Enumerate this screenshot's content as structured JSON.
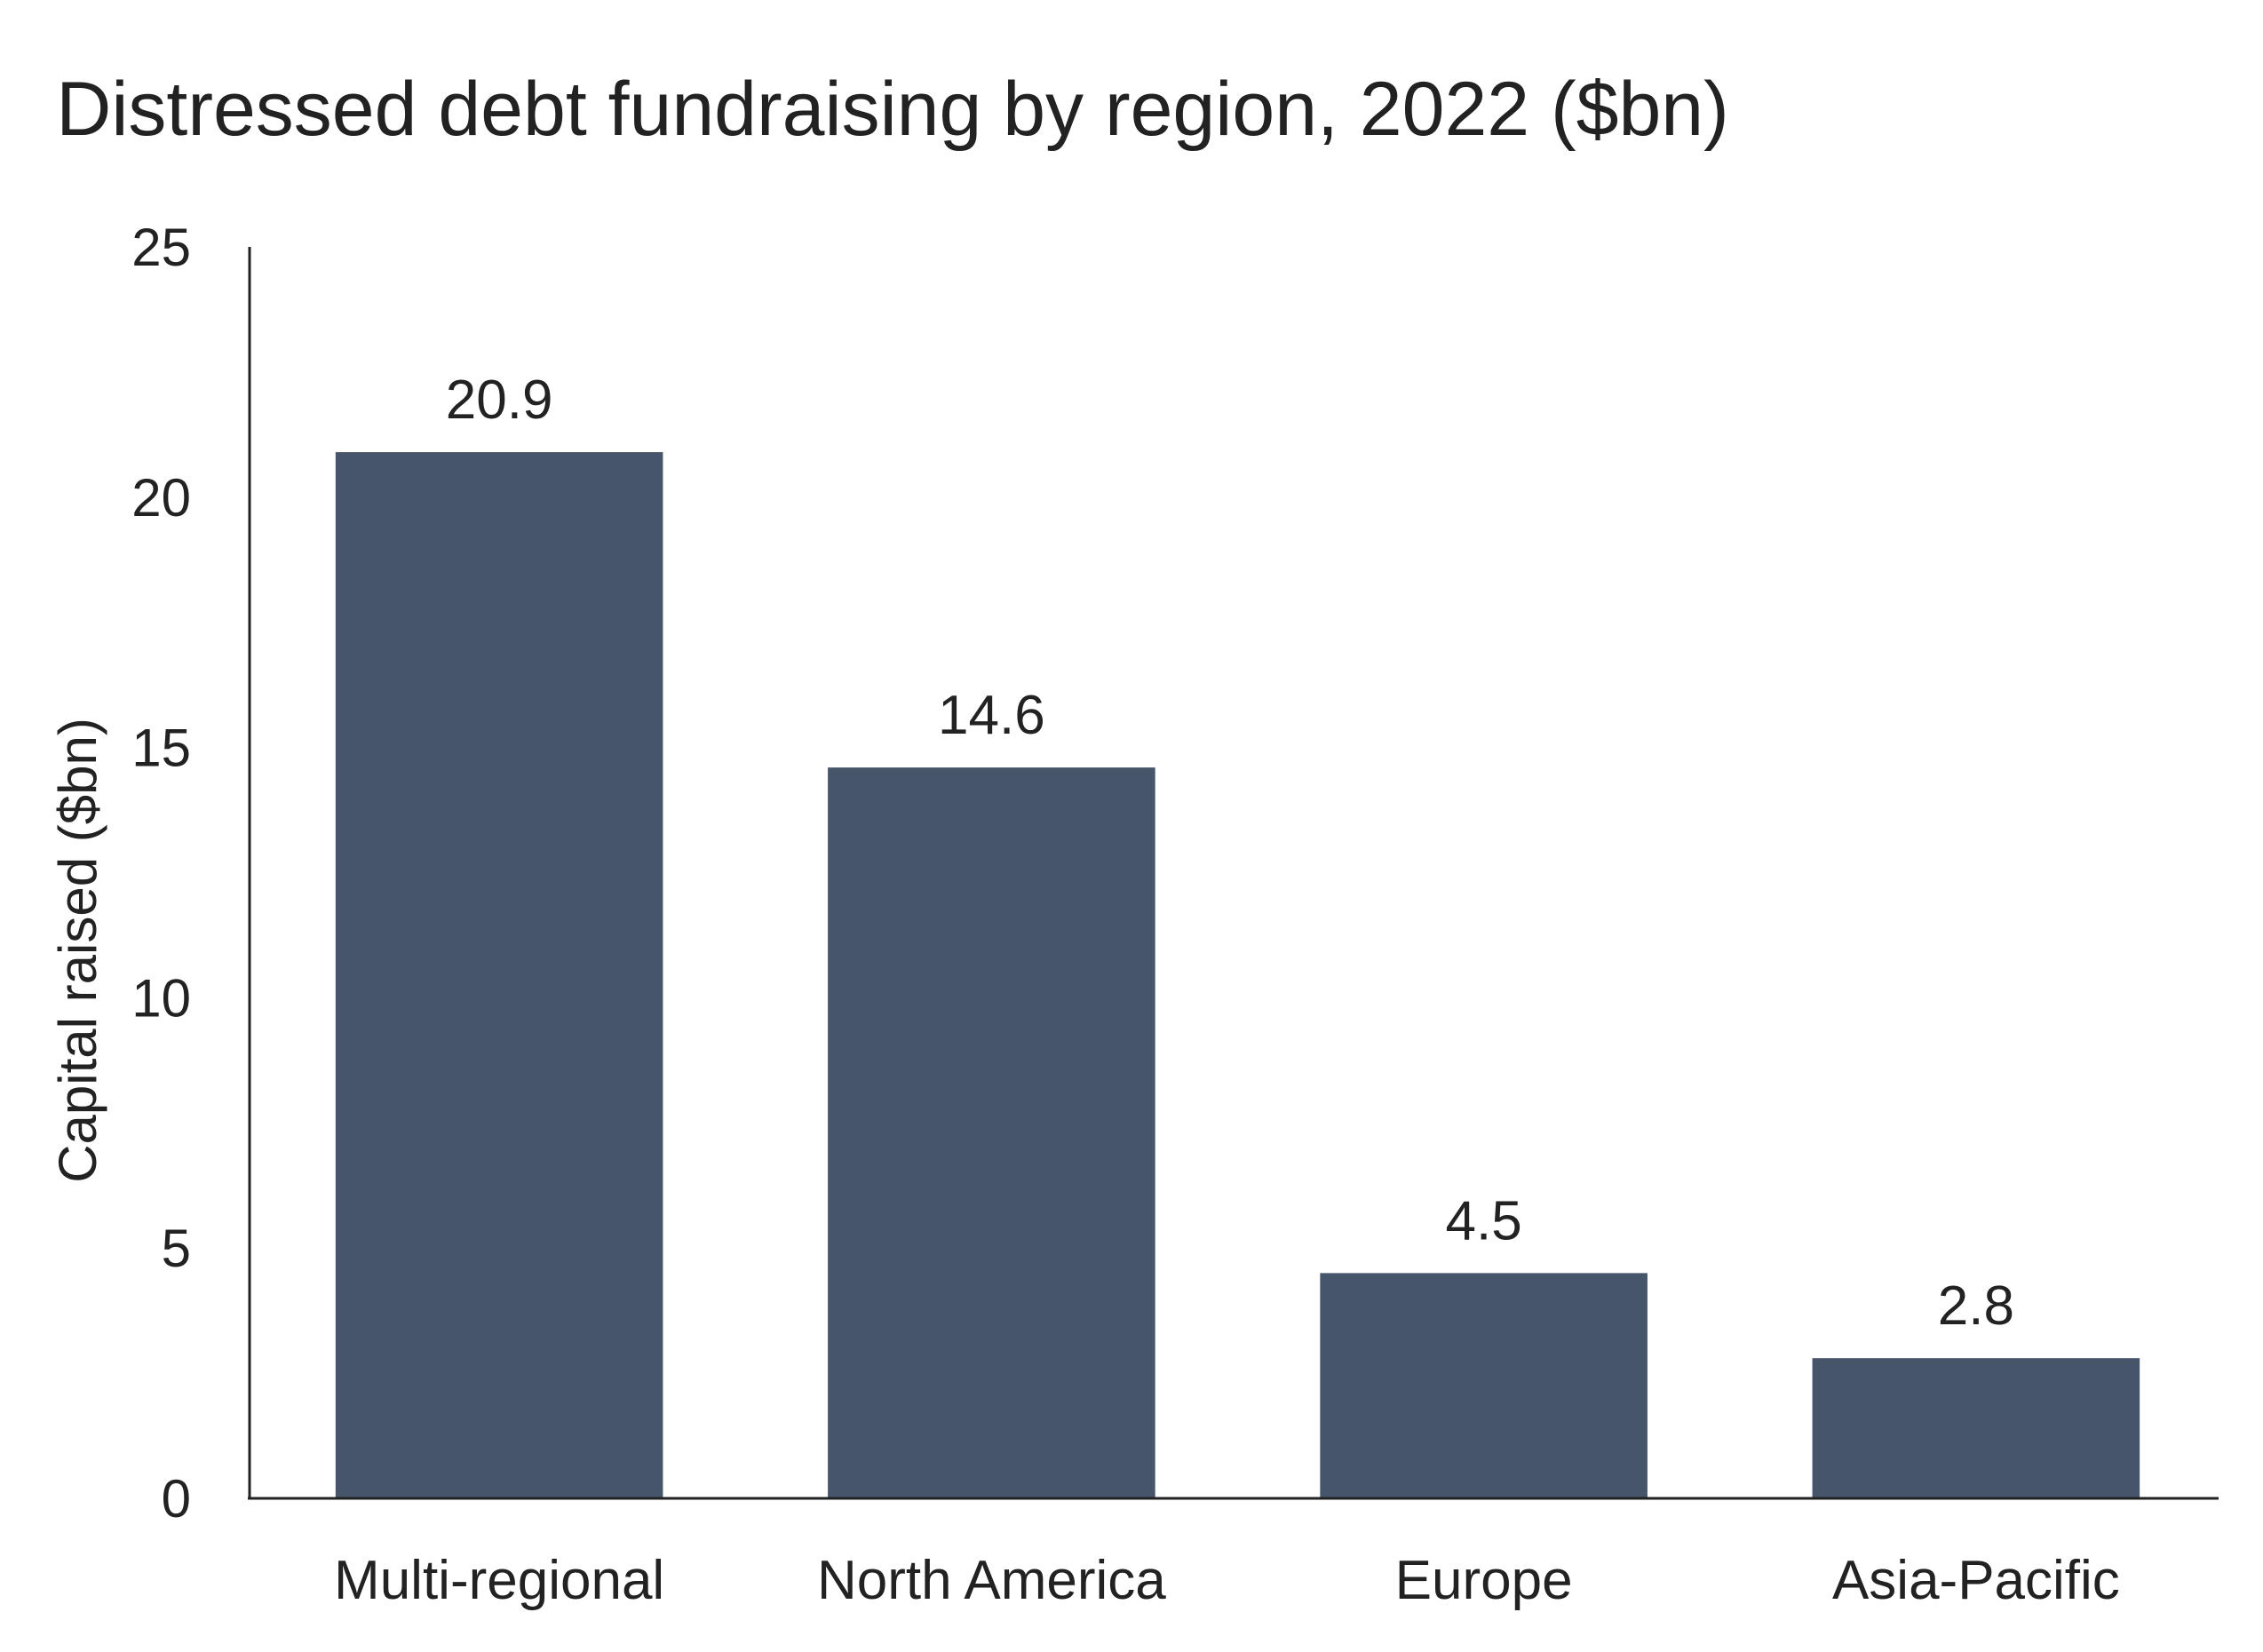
{
  "chart_data": {
    "type": "bar",
    "title": "Distressed debt fundraising by region, 2022 ($bn)",
    "xlabel": "",
    "ylabel": "Capital raised ($bn)",
    "categories": [
      "Multi-regional",
      "North America",
      "Europe",
      "Asia-Pacific"
    ],
    "values": [
      20.9,
      14.6,
      4.5,
      2.8
    ],
    "data_labels": [
      "20.9",
      "14.6",
      "4.5",
      "2.8"
    ],
    "ylim": [
      0,
      25
    ],
    "yticks": [
      0,
      5,
      10,
      15,
      20,
      25
    ],
    "grid": false,
    "legend": "none",
    "bar_color": "#465569",
    "axis_color": "#222222"
  }
}
